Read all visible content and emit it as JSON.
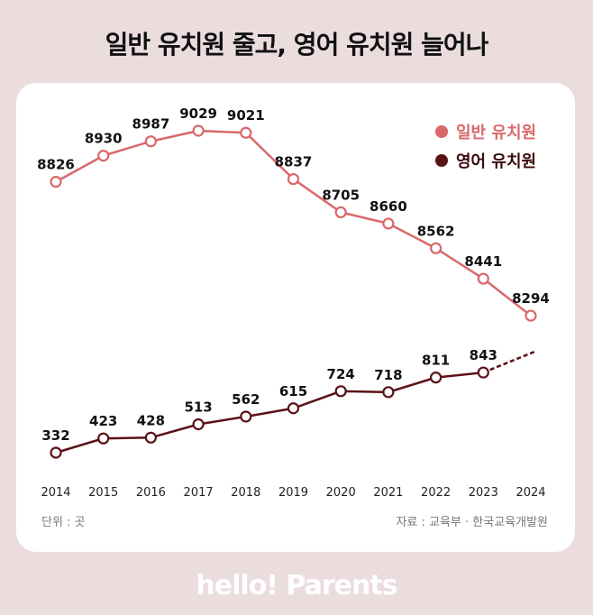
{
  "title": "일반 유치원 줄고, 영어 유치원 늘어나",
  "footer": {
    "unit": "단위 : 곳",
    "source": "자료 : 교육부 · 한국교육개발원"
  },
  "logo": "hello! Parents",
  "colors": {
    "general": "#d9686b",
    "english": "#5a1218",
    "background": "#ebdcde"
  },
  "chart_data": {
    "type": "line",
    "title": "",
    "categories": [
      "2014",
      "2015",
      "2016",
      "2017",
      "2018",
      "2019",
      "2020",
      "2021",
      "2022",
      "2023",
      "2024"
    ],
    "legend_position": "top-right",
    "grid": false,
    "series": [
      {
        "name": "일반 유치원",
        "values": [
          8826,
          8930,
          8987,
          9029,
          9021,
          8837,
          8705,
          8660,
          8562,
          8441,
          8294
        ]
      },
      {
        "name": "영어 유치원",
        "values": [
          332,
          423,
          428,
          513,
          562,
          615,
          724,
          718,
          811,
          843,
          null
        ],
        "dashed_extension_to": "2024"
      }
    ]
  }
}
